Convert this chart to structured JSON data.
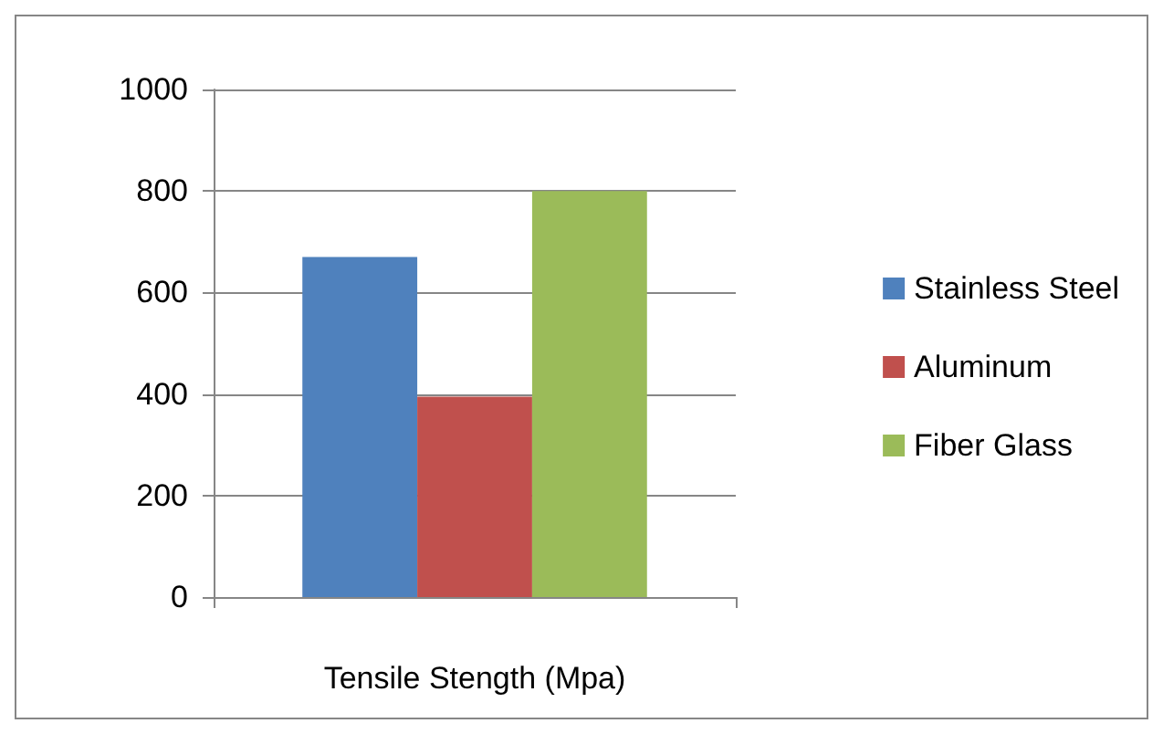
{
  "chart_data": {
    "type": "bar",
    "categories": [
      null
    ],
    "xlabel": "Tensile Stength (Mpa)",
    "series": [
      {
        "name": "Stainless Steel",
        "color": "#4f81bd",
        "values": [
          670
        ]
      },
      {
        "name": "Aluminum",
        "color": "#c0504d",
        "values": [
          395
        ]
      },
      {
        "name": "Fiber Glass",
        "color": "#9bbb59",
        "values": [
          800
        ]
      }
    ],
    "ylim": [
      0,
      1000
    ],
    "yticks": [
      0,
      200,
      400,
      600,
      800,
      1000
    ],
    "grid": "y",
    "legend": "right"
  }
}
